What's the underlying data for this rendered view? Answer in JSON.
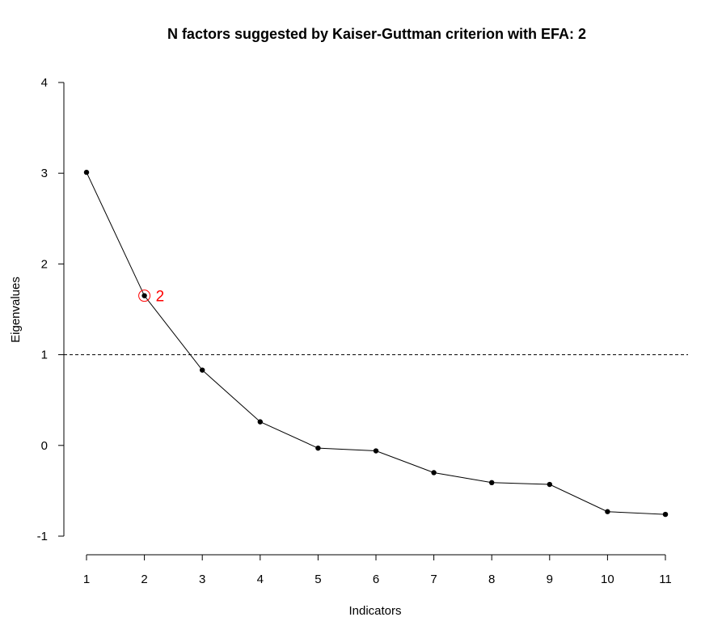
{
  "chart_data": {
    "type": "line",
    "title": "N factors suggested by Kaiser-Guttman criterion with EFA: 2",
    "xlabel": "Indicators",
    "ylabel": "Eigenvalues",
    "x": [
      1,
      2,
      3,
      4,
      5,
      6,
      7,
      8,
      9,
      10,
      11
    ],
    "y": [
      3.01,
      1.65,
      0.83,
      0.26,
      -0.03,
      -0.06,
      -0.3,
      -0.41,
      -0.43,
      -0.73,
      -0.76
    ],
    "xlim": [
      1,
      11
    ],
    "ylim": [
      -1,
      4
    ],
    "x_ticks": [
      "1",
      "2",
      "3",
      "4",
      "5",
      "6",
      "7",
      "8",
      "9",
      "10",
      "11"
    ],
    "y_ticks": [
      "-1",
      "0",
      "1",
      "2",
      "3",
      "4"
    ],
    "reference_line": {
      "y": 1,
      "style": "dashed"
    },
    "highlight": {
      "x": 2,
      "label": "2",
      "color": "#ff0000"
    },
    "grid": false,
    "line_color": "#000000",
    "marker_color": "#000000"
  }
}
